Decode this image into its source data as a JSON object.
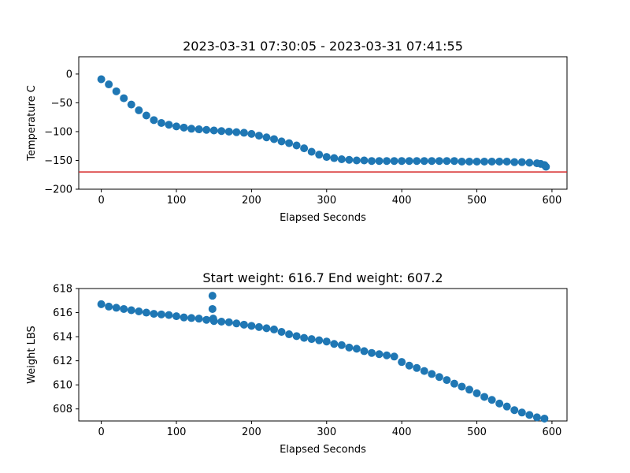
{
  "chart_data": [
    {
      "type": "scatter",
      "title": "2023-03-31 07:30:05 - 2023-03-31 07:41:55",
      "xlabel": "Elapsed Seconds",
      "ylabel": "Temperature C",
      "xlim": [
        -30,
        620
      ],
      "ylim": [
        -200,
        30
      ],
      "xticks": [
        0,
        100,
        200,
        300,
        400,
        500,
        600
      ],
      "xtick_labels": [
        "0",
        "100",
        "200",
        "300",
        "400",
        "500",
        "600"
      ],
      "yticks": [
        -200,
        -150,
        -100,
        -50,
        0
      ],
      "ytick_labels": [
        "−200",
        "−150",
        "−100",
        "−50",
        "0"
      ],
      "grid": false,
      "marker_color": "#1f77b4",
      "reference_line": {
        "y": -170,
        "color": "#d62728"
      },
      "x": [
        0,
        10,
        20,
        30,
        40,
        50,
        60,
        70,
        80,
        90,
        100,
        110,
        120,
        130,
        140,
        150,
        160,
        170,
        180,
        190,
        200,
        210,
        220,
        230,
        240,
        250,
        260,
        270,
        280,
        290,
        300,
        310,
        320,
        330,
        340,
        350,
        360,
        370,
        380,
        390,
        400,
        410,
        420,
        430,
        440,
        450,
        460,
        470,
        480,
        490,
        500,
        510,
        520,
        530,
        540,
        550,
        560,
        570,
        580,
        585,
        590,
        592
      ],
      "y": [
        -9,
        -18,
        -30,
        -42,
        -53,
        -63,
        -72,
        -80,
        -85,
        -88,
        -91,
        -93,
        -95,
        -96,
        -97,
        -98,
        -99,
        -100,
        -101,
        -102,
        -104,
        -107,
        -110,
        -113,
        -117,
        -120,
        -124,
        -129,
        -135,
        -140,
        -144,
        -146,
        -148,
        -149,
        -150,
        -150,
        -151,
        -151,
        -151,
        -151,
        -151,
        -151,
        -151,
        -151,
        -151,
        -151,
        -151,
        -151,
        -152,
        -152,
        -152,
        -152,
        -152,
        -152,
        -152,
        -153,
        -153,
        -154,
        -155,
        -156,
        -158,
        -161
      ]
    },
    {
      "type": "scatter",
      "title": "Start weight: 616.7 End weight: 607.2",
      "xlabel": "Elapsed Seconds",
      "ylabel": "Weight LBS",
      "xlim": [
        -30,
        620
      ],
      "ylim": [
        607,
        618
      ],
      "xticks": [
        0,
        100,
        200,
        300,
        400,
        500,
        600
      ],
      "xtick_labels": [
        "0",
        "100",
        "200",
        "300",
        "400",
        "500",
        "600"
      ],
      "yticks": [
        608,
        610,
        612,
        614,
        616,
        618
      ],
      "ytick_labels": [
        "608",
        "610",
        "612",
        "614",
        "616",
        "618"
      ],
      "grid": false,
      "marker_color": "#1f77b4",
      "x": [
        0,
        10,
        20,
        30,
        40,
        50,
        60,
        70,
        80,
        90,
        100,
        110,
        120,
        130,
        140,
        148,
        148,
        149,
        150,
        160,
        170,
        180,
        190,
        200,
        210,
        220,
        230,
        240,
        250,
        260,
        270,
        280,
        290,
        300,
        310,
        320,
        330,
        340,
        350,
        360,
        370,
        380,
        390,
        400,
        410,
        420,
        430,
        440,
        450,
        460,
        470,
        480,
        490,
        500,
        510,
        520,
        530,
        540,
        550,
        560,
        570,
        580,
        590
      ],
      "y": [
        616.7,
        616.5,
        616.4,
        616.3,
        616.2,
        616.1,
        616.0,
        615.9,
        615.85,
        615.8,
        615.7,
        615.6,
        615.55,
        615.5,
        615.4,
        617.4,
        616.3,
        615.5,
        615.3,
        615.25,
        615.2,
        615.1,
        615.0,
        614.9,
        614.8,
        614.7,
        614.6,
        614.4,
        614.2,
        614.05,
        613.9,
        613.8,
        613.7,
        613.6,
        613.4,
        613.3,
        613.1,
        613.0,
        612.8,
        612.65,
        612.55,
        612.45,
        612.35,
        611.9,
        611.6,
        611.4,
        611.15,
        610.9,
        610.65,
        610.4,
        610.1,
        609.85,
        609.6,
        609.3,
        609.0,
        608.75,
        608.45,
        608.2,
        607.9,
        607.7,
        607.5,
        607.3,
        607.2
      ]
    }
  ]
}
